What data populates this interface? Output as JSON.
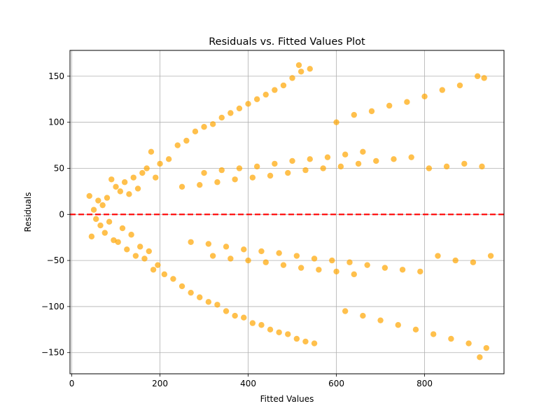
{
  "chart_data": {
    "type": "scatter",
    "title": "Residuals vs. Fitted Values Plot",
    "xlabel": "Fitted Values",
    "ylabel": "Residuals",
    "xlim": [
      -4,
      980
    ],
    "ylim": [
      -173,
      178
    ],
    "xticks": [
      0,
      200,
      400,
      600,
      800
    ],
    "yticks": [
      -150,
      -100,
      -50,
      0,
      50,
      100,
      150
    ],
    "grid": true,
    "point_color": "#FFA500",
    "point_alpha": 0.7,
    "reference_line": {
      "y": 0,
      "color": "#FF0000",
      "style": "dashed"
    },
    "series": [
      {
        "values": [
          {
            "x": 40,
            "y": 20
          },
          {
            "x": 45,
            "y": -24
          },
          {
            "x": 50,
            "y": 5
          },
          {
            "x": 55,
            "y": -5
          },
          {
            "x": 60,
            "y": 15
          },
          {
            "x": 65,
            "y": -12
          },
          {
            "x": 70,
            "y": 10
          },
          {
            "x": 75,
            "y": -20
          },
          {
            "x": 80,
            "y": 18
          },
          {
            "x": 85,
            "y": -8
          },
          {
            "x": 90,
            "y": 38
          },
          {
            "x": 95,
            "y": -28
          },
          {
            "x": 100,
            "y": 30
          },
          {
            "x": 105,
            "y": -30
          },
          {
            "x": 110,
            "y": 25
          },
          {
            "x": 115,
            "y": -15
          },
          {
            "x": 120,
            "y": 35
          },
          {
            "x": 125,
            "y": -38
          },
          {
            "x": 130,
            "y": 22
          },
          {
            "x": 135,
            "y": -22
          },
          {
            "x": 140,
            "y": 40
          },
          {
            "x": 145,
            "y": -45
          },
          {
            "x": 150,
            "y": 28
          },
          {
            "x": 155,
            "y": -35
          },
          {
            "x": 160,
            "y": 45
          },
          {
            "x": 165,
            "y": -48
          },
          {
            "x": 170,
            "y": 50
          },
          {
            "x": 175,
            "y": -40
          },
          {
            "x": 180,
            "y": 68
          },
          {
            "x": 185,
            "y": -60
          },
          {
            "x": 190,
            "y": 40
          },
          {
            "x": 195,
            "y": -55
          },
          {
            "x": 200,
            "y": 55
          },
          {
            "x": 210,
            "y": -65
          },
          {
            "x": 220,
            "y": 60
          },
          {
            "x": 230,
            "y": -70
          },
          {
            "x": 240,
            "y": 75
          },
          {
            "x": 250,
            "y": -78
          },
          {
            "x": 260,
            "y": 80
          },
          {
            "x": 270,
            "y": -85
          },
          {
            "x": 280,
            "y": 90
          },
          {
            "x": 290,
            "y": -90
          },
          {
            "x": 300,
            "y": 95
          },
          {
            "x": 310,
            "y": -95
          },
          {
            "x": 320,
            "y": 98
          },
          {
            "x": 330,
            "y": -98
          },
          {
            "x": 340,
            "y": 105
          },
          {
            "x": 350,
            "y": -105
          },
          {
            "x": 360,
            "y": 110
          },
          {
            "x": 370,
            "y": -110
          },
          {
            "x": 380,
            "y": 115
          },
          {
            "x": 390,
            "y": -112
          },
          {
            "x": 400,
            "y": 120
          },
          {
            "x": 410,
            "y": -118
          },
          {
            "x": 420,
            "y": 125
          },
          {
            "x": 430,
            "y": -120
          },
          {
            "x": 440,
            "y": 130
          },
          {
            "x": 450,
            "y": -125
          },
          {
            "x": 460,
            "y": 135
          },
          {
            "x": 470,
            "y": -128
          },
          {
            "x": 480,
            "y": 140
          },
          {
            "x": 490,
            "y": -130
          },
          {
            "x": 500,
            "y": 148
          },
          {
            "x": 510,
            "y": -135
          },
          {
            "x": 515,
            "y": 162
          },
          {
            "x": 520,
            "y": 155
          },
          {
            "x": 530,
            "y": -138
          },
          {
            "x": 540,
            "y": 158
          },
          {
            "x": 550,
            "y": -140
          },
          {
            "x": 300,
            "y": 45
          },
          {
            "x": 320,
            "y": -45
          },
          {
            "x": 340,
            "y": 48
          },
          {
            "x": 360,
            "y": -48
          },
          {
            "x": 380,
            "y": 50
          },
          {
            "x": 400,
            "y": -50
          },
          {
            "x": 420,
            "y": 52
          },
          {
            "x": 440,
            "y": -52
          },
          {
            "x": 460,
            "y": 55
          },
          {
            "x": 480,
            "y": -55
          },
          {
            "x": 500,
            "y": 58
          },
          {
            "x": 520,
            "y": -58
          },
          {
            "x": 540,
            "y": 60
          },
          {
            "x": 560,
            "y": -60
          },
          {
            "x": 580,
            "y": 62
          },
          {
            "x": 600,
            "y": -62
          },
          {
            "x": 620,
            "y": 65
          },
          {
            "x": 640,
            "y": -65
          },
          {
            "x": 660,
            "y": 68
          },
          {
            "x": 250,
            "y": 30
          },
          {
            "x": 270,
            "y": -30
          },
          {
            "x": 290,
            "y": 32
          },
          {
            "x": 310,
            "y": -32
          },
          {
            "x": 330,
            "y": 35
          },
          {
            "x": 350,
            "y": -35
          },
          {
            "x": 370,
            "y": 38
          },
          {
            "x": 390,
            "y": -38
          },
          {
            "x": 410,
            "y": 40
          },
          {
            "x": 430,
            "y": -40
          },
          {
            "x": 450,
            "y": 42
          },
          {
            "x": 470,
            "y": -42
          },
          {
            "x": 490,
            "y": 45
          },
          {
            "x": 510,
            "y": -45
          },
          {
            "x": 530,
            "y": 48
          },
          {
            "x": 550,
            "y": -48
          },
          {
            "x": 570,
            "y": 50
          },
          {
            "x": 590,
            "y": -50
          },
          {
            "x": 610,
            "y": 52
          },
          {
            "x": 630,
            "y": -52
          },
          {
            "x": 650,
            "y": 55
          },
          {
            "x": 670,
            "y": -55
          },
          {
            "x": 690,
            "y": 58
          },
          {
            "x": 710,
            "y": -58
          },
          {
            "x": 730,
            "y": 60
          },
          {
            "x": 750,
            "y": -60
          },
          {
            "x": 770,
            "y": 62
          },
          {
            "x": 790,
            "y": -62
          },
          {
            "x": 810,
            "y": 50
          },
          {
            "x": 830,
            "y": -45
          },
          {
            "x": 850,
            "y": 52
          },
          {
            "x": 870,
            "y": -50
          },
          {
            "x": 890,
            "y": 55
          },
          {
            "x": 910,
            "y": -52
          },
          {
            "x": 930,
            "y": 52
          },
          {
            "x": 950,
            "y": -45
          },
          {
            "x": 600,
            "y": 100
          },
          {
            "x": 620,
            "y": -105
          },
          {
            "x": 640,
            "y": 108
          },
          {
            "x": 660,
            "y": -110
          },
          {
            "x": 680,
            "y": 112
          },
          {
            "x": 700,
            "y": -115
          },
          {
            "x": 720,
            "y": 118
          },
          {
            "x": 740,
            "y": -120
          },
          {
            "x": 760,
            "y": 122
          },
          {
            "x": 780,
            "y": -125
          },
          {
            "x": 800,
            "y": 128
          },
          {
            "x": 820,
            "y": -130
          },
          {
            "x": 840,
            "y": 135
          },
          {
            "x": 860,
            "y": -135
          },
          {
            "x": 880,
            "y": 140
          },
          {
            "x": 900,
            "y": -140
          },
          {
            "x": 920,
            "y": 150
          },
          {
            "x": 940,
            "y": -145
          },
          {
            "x": 925,
            "y": -155
          },
          {
            "x": 935,
            "y": 148
          }
        ]
      }
    ]
  }
}
